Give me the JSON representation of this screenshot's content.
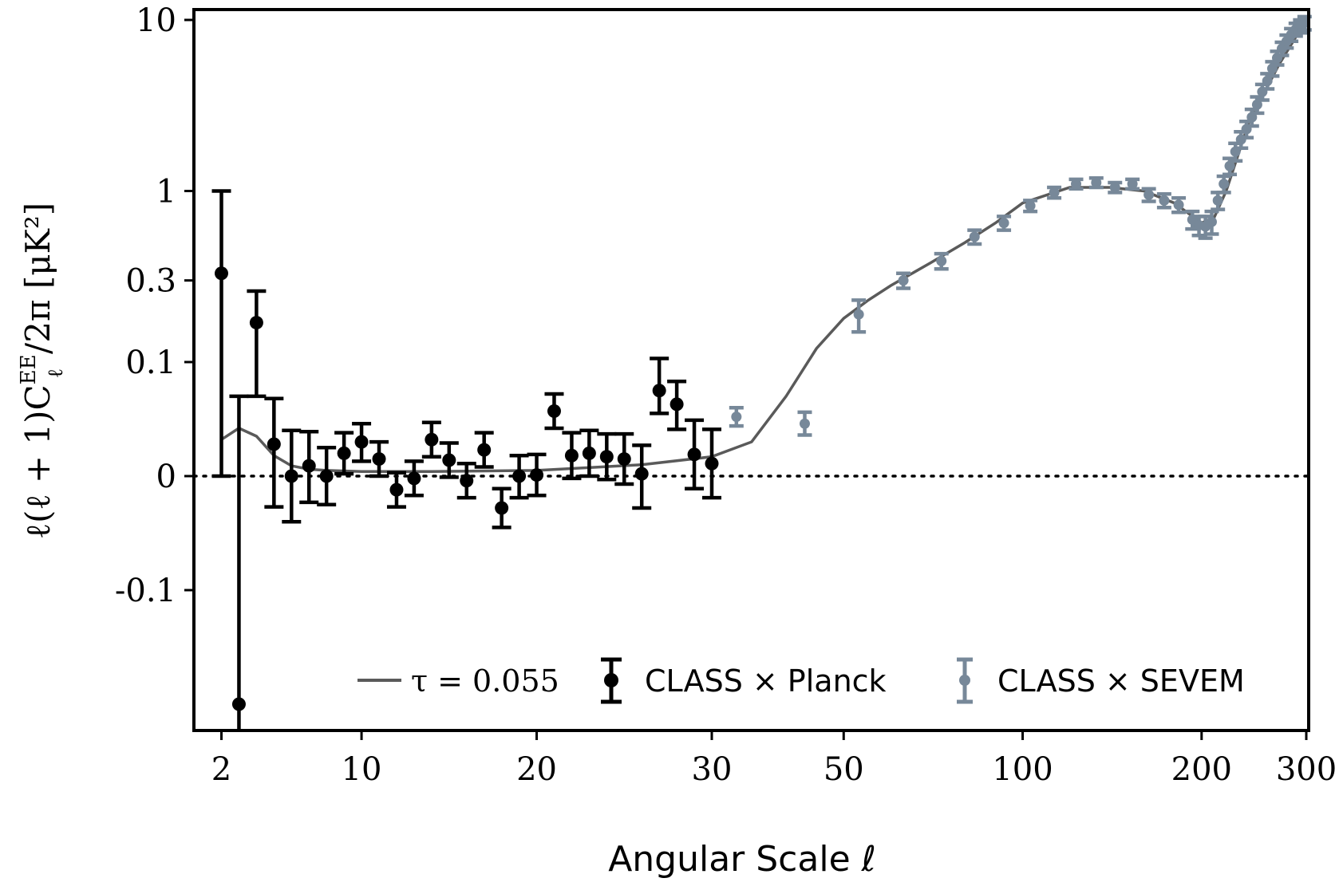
{
  "chart_data": {
    "type": "scatter",
    "xlabel": "Angular Scale ℓ",
    "ylabel": "ℓ(ℓ + 1)C",
    "ylabel_sup": "EE",
    "ylabel_sub": "ℓ",
    "ylabel_tail": "/2π [μK²]",
    "x_scale": "symlog-like (linear 2–30, log 30–300)",
    "y_scale": "symlog (linear −0.1–0.1, log 0.1–10)",
    "xlim": [
      1.5,
      305
    ],
    "ylim": [
      -0.25,
      10
    ],
    "x_ticks": [
      2,
      10,
      20,
      30,
      50,
      100,
      200,
      300
    ],
    "x_tick_labels": [
      "2",
      "10",
      "20",
      "30",
      "50",
      "100",
      "200",
      "300"
    ],
    "y_ticks": [
      -0.1,
      0,
      0.1,
      0.3,
      1,
      10
    ],
    "y_tick_labels": [
      "-0.1",
      "0",
      "0.1",
      "0.3",
      "1",
      "10"
    ],
    "zero_line": "dotted",
    "legend_position": "bottom-right",
    "colors": {
      "planck": "#000000",
      "sevem": "#778899",
      "model": "#5a5a5a"
    },
    "model": {
      "name": "τ = 0.055",
      "x": [
        2,
        3,
        4,
        5,
        6,
        7,
        8,
        10,
        14,
        20,
        26,
        30,
        35,
        40,
        45,
        50,
        55,
        60,
        70,
        80,
        90,
        100,
        120,
        140,
        160,
        180,
        200,
        210,
        220,
        240,
        270,
        300
      ],
      "y": [
        0.032,
        0.042,
        0.035,
        0.018,
        0.009,
        0.006,
        0.005,
        0.004,
        0.004,
        0.005,
        0.01,
        0.017,
        0.03,
        0.07,
        0.12,
        0.18,
        0.23,
        0.28,
        0.38,
        0.5,
        0.65,
        0.85,
        1.05,
        1.05,
        1.0,
        0.85,
        0.65,
        0.7,
        1.0,
        2.5,
        5.5,
        10.0
      ]
    },
    "series": [
      {
        "name": "CLASS × Planck",
        "x": [
          2,
          3,
          4,
          5,
          6,
          7,
          8,
          9,
          10,
          11,
          12,
          13,
          14,
          15,
          16,
          17,
          18,
          19,
          20,
          21,
          22,
          23,
          24,
          25,
          26,
          27,
          28,
          29,
          30
        ],
        "y": [
          0.33,
          -0.2,
          0.17,
          0.028,
          0.0,
          0.009,
          0.0,
          0.02,
          0.03,
          0.015,
          -0.012,
          -0.002,
          0.032,
          0.014,
          -0.004,
          0.023,
          -0.028,
          0.0,
          0.001,
          0.057,
          0.018,
          0.02,
          0.017,
          0.015,
          0.002,
          0.075,
          0.063,
          0.019,
          0.011
        ],
        "err_low": [
          0.33,
          0.2,
          0.1,
          0.055,
          0.04,
          0.032,
          0.025,
          0.018,
          0.017,
          0.015,
          0.015,
          0.015,
          0.015,
          0.015,
          0.015,
          0.015,
          0.017,
          0.019,
          0.018,
          0.015,
          0.02,
          0.02,
          0.02,
          0.022,
          0.03,
          0.02,
          0.022,
          0.03,
          0.03
        ],
        "err_high": [
          0.67,
          0.27,
          0.09,
          0.04,
          0.04,
          0.03,
          0.025,
          0.018,
          0.016,
          0.015,
          0.015,
          0.015,
          0.015,
          0.015,
          0.015,
          0.015,
          0.017,
          0.018,
          0.018,
          0.015,
          0.02,
          0.02,
          0.02,
          0.022,
          0.025,
          0.03,
          0.02,
          0.03,
          0.03
        ]
      },
      {
        "name": "CLASS × SEVEM",
        "x": [
          33,
          43,
          53,
          63,
          73,
          83,
          93,
          103,
          113,
          123,
          133,
          143,
          153,
          163,
          173,
          183,
          193,
          198,
          203,
          208,
          213,
          218,
          223,
          228,
          233,
          238,
          243,
          248,
          253,
          258,
          263,
          268,
          273,
          278,
          283,
          288,
          293,
          298
        ],
        "y": [
          0.052,
          0.046,
          0.19,
          0.3,
          0.39,
          0.54,
          0.65,
          0.82,
          0.98,
          1.1,
          1.12,
          1.05,
          1.1,
          0.95,
          0.88,
          0.83,
          0.68,
          0.63,
          0.62,
          0.66,
          0.88,
          1.1,
          1.4,
          1.7,
          2.0,
          2.3,
          2.7,
          3.2,
          3.8,
          4.4,
          5.2,
          6.0,
          6.8,
          7.5,
          8.2,
          8.8,
          9.2,
          9.6
        ],
        "err_low": [
          0.008,
          0.01,
          0.04,
          0.03,
          0.04,
          0.05,
          0.06,
          0.06,
          0.07,
          0.07,
          0.07,
          0.07,
          0.07,
          0.08,
          0.08,
          0.08,
          0.08,
          0.08,
          0.09,
          0.1,
          0.1,
          0.12,
          0.15,
          0.2,
          0.22,
          0.25,
          0.3,
          0.35,
          0.4,
          0.45,
          0.5,
          0.55,
          0.6,
          0.65,
          0.7,
          0.75,
          0.8,
          0.85
        ],
        "err_high": [
          0.008,
          0.01,
          0.04,
          0.03,
          0.04,
          0.05,
          0.06,
          0.06,
          0.07,
          0.07,
          0.07,
          0.07,
          0.07,
          0.08,
          0.08,
          0.08,
          0.08,
          0.08,
          0.09,
          0.1,
          0.1,
          0.12,
          0.15,
          0.2,
          0.22,
          0.25,
          0.3,
          0.35,
          0.4,
          0.45,
          0.5,
          0.55,
          0.6,
          0.65,
          0.7,
          0.75,
          0.8,
          0.85
        ]
      }
    ]
  }
}
